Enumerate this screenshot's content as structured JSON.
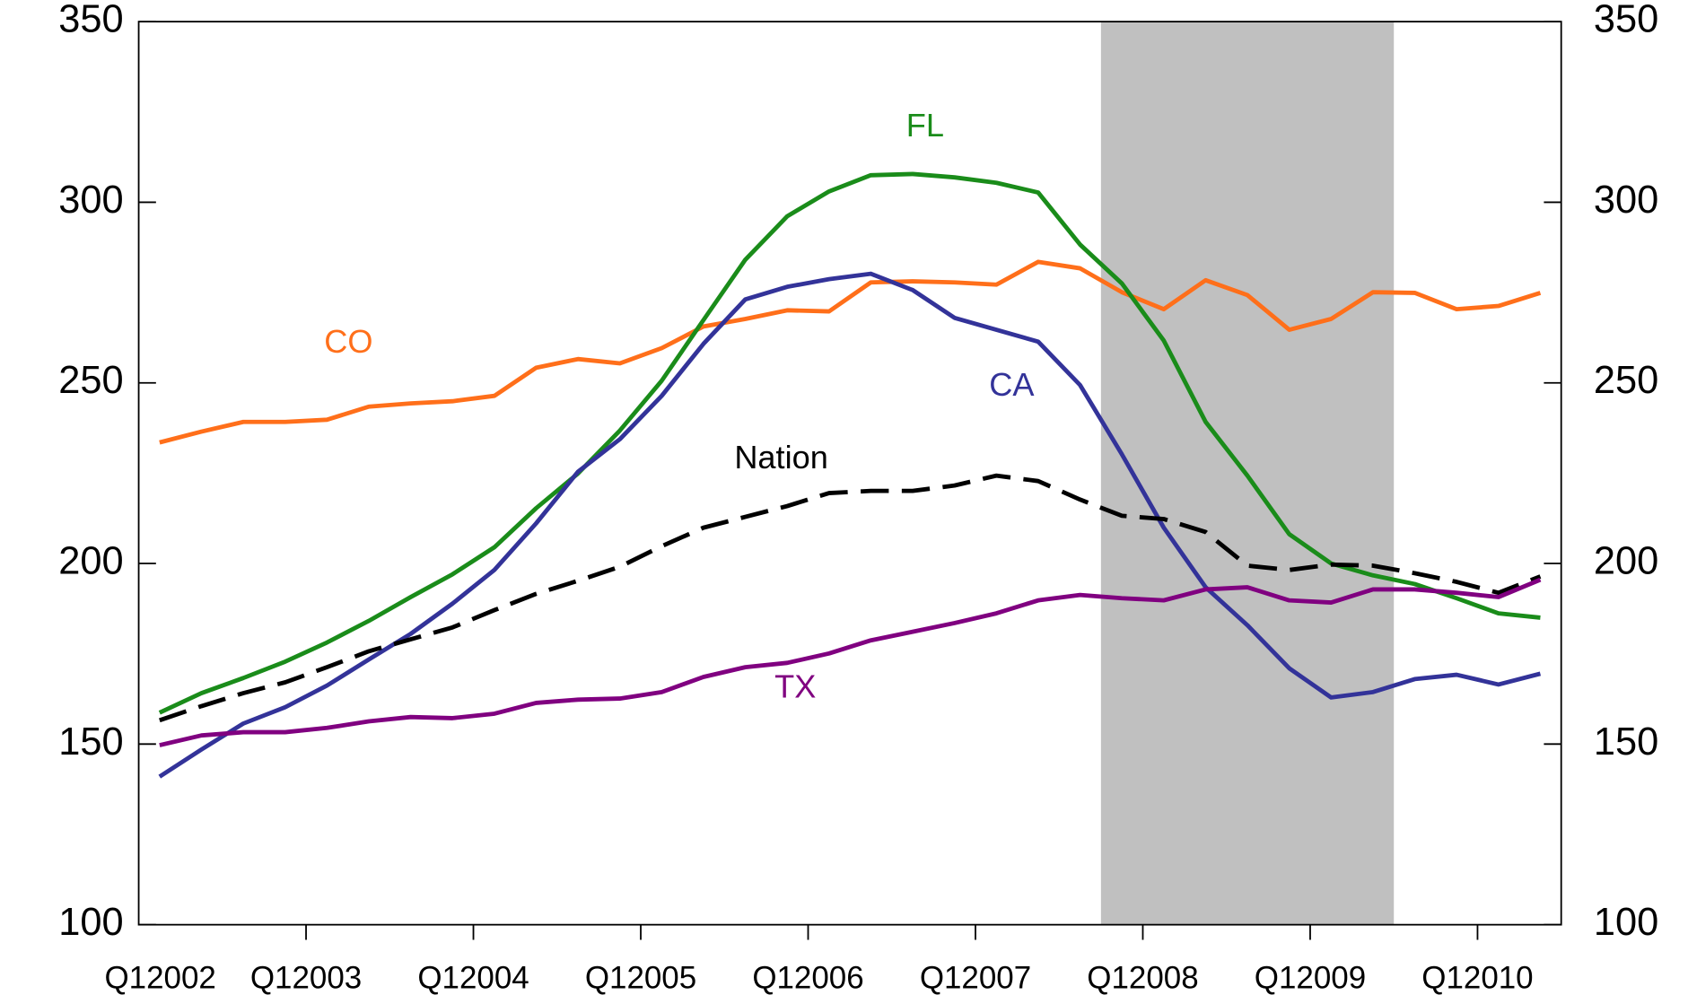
{
  "chart_data": {
    "type": "line",
    "categories": [
      "Q12002",
      null,
      null,
      null,
      "Q12003",
      null,
      null,
      null,
      "Q12004",
      null,
      null,
      null,
      "Q12005",
      null,
      null,
      null,
      "Q12006",
      null,
      null,
      null,
      "Q12007",
      null,
      null,
      null,
      "Q12008",
      null,
      null,
      null,
      "Q12009",
      null,
      null,
      null,
      "Q12010",
      null
    ],
    "ylim": [
      100,
      350
    ],
    "yticks": [
      100,
      150,
      200,
      250,
      300,
      350
    ],
    "y2lim": [
      100,
      350
    ],
    "y2ticks": [
      100,
      150,
      200,
      250,
      300,
      350
    ],
    "shaded_region": {
      "from": 23,
      "to": 30,
      "color": "#c0c0c0"
    },
    "series": [
      {
        "name": "CO",
        "color": "#ff6f1a",
        "line_style": "solid",
        "values": [
          233.5,
          236.5,
          239.2,
          239.2,
          239.8,
          243.4,
          244.3,
          244.9,
          246.4,
          254.2,
          256.6,
          255.4,
          259.6,
          265.6,
          267.7,
          270.1,
          269.8,
          277.8,
          278.1,
          277.8,
          277.2,
          283.5,
          281.7,
          275.1,
          270.4,
          278.4,
          274.3,
          264.7,
          267.7,
          275.1,
          274.9,
          270.4,
          271.3,
          274.9
        ]
      },
      {
        "name": "FL",
        "color": "#1a8c1a",
        "line_style": "solid",
        "values": [
          158.7,
          164.1,
          168.3,
          172.8,
          178.1,
          184.1,
          190.7,
          197.0,
          204.5,
          215.3,
          224.9,
          236.8,
          250.6,
          267.4,
          284.1,
          296.1,
          303.0,
          307.5,
          307.8,
          306.9,
          305.4,
          302.7,
          288.3,
          277.5,
          261.7,
          239.2,
          224.3,
          208.1,
          200.0,
          196.7,
          194.3,
          190.4,
          186.2,
          185.0
        ]
      },
      {
        "name": "CA",
        "color": "#333399",
        "line_style": "solid",
        "values": [
          141.0,
          148.5,
          155.7,
          160.2,
          166.2,
          173.4,
          180.5,
          188.9,
          198.2,
          211.1,
          225.4,
          234.4,
          246.4,
          260.8,
          273.1,
          276.6,
          278.7,
          280.2,
          275.7,
          268.0,
          264.7,
          261.4,
          249.4,
          230.2,
          209.9,
          193.4,
          182.9,
          171.0,
          162.9,
          164.4,
          168.0,
          169.2,
          166.5,
          169.5
        ]
      },
      {
        "name": "Nation",
        "color": "#000000",
        "line_style": "dashed",
        "values": [
          156.6,
          160.5,
          164.1,
          167.1,
          171.3,
          175.7,
          179.0,
          182.3,
          187.1,
          191.6,
          195.2,
          199.1,
          204.8,
          209.9,
          212.9,
          215.9,
          219.5,
          220.1,
          220.1,
          221.6,
          224.3,
          222.8,
          217.7,
          213.2,
          212.3,
          208.7,
          199.4,
          198.2,
          199.7,
          199.4,
          197.3,
          194.9,
          191.9,
          196.4
        ]
      },
      {
        "name": "TX",
        "color": "#800080",
        "line_style": "solid",
        "values": [
          149.7,
          152.4,
          153.3,
          153.3,
          154.5,
          156.3,
          157.5,
          157.2,
          158.4,
          161.4,
          162.3,
          162.6,
          164.4,
          168.6,
          171.3,
          172.5,
          175.1,
          178.7,
          181.1,
          183.5,
          186.2,
          189.8,
          191.3,
          190.4,
          189.8,
          192.8,
          193.4,
          189.8,
          189.2,
          192.8,
          192.8,
          191.9,
          190.7,
          195.5
        ]
      }
    ]
  }
}
